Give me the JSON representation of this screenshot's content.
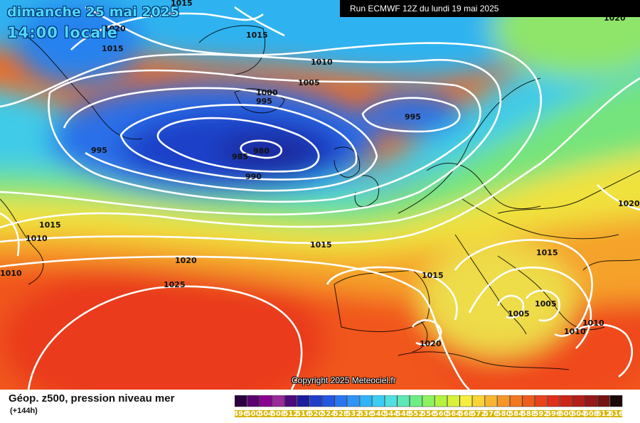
{
  "header": {
    "date": "dimanche 25 mai 2025",
    "time": "14:00 locale",
    "run": "Run ECMWF 12Z du lundi 19 mai 2025"
  },
  "copyright": "Copyright 2025 Meteociel.fr",
  "footer": {
    "field": "Géop. z500, pression niveau mer",
    "step": "(+144h)"
  },
  "legend": {
    "labels": [
      "496",
      "500",
      "504",
      "508",
      "512",
      "516",
      "520",
      "524",
      "528",
      "532",
      "536",
      "540",
      "544",
      "548",
      "552",
      "556",
      "560",
      "564",
      "568",
      "572",
      "576",
      "580",
      "584",
      "588",
      "592",
      "596",
      "600",
      "604",
      "608",
      "612",
      "616"
    ],
    "colors": [
      "#2a0040",
      "#5a0070",
      "#8a0090",
      "#9a2a9a",
      "#4d0a7a",
      "#1c1c9e",
      "#1f3ec8",
      "#2458e0",
      "#2a76f0",
      "#2f94f5",
      "#30b4f7",
      "#3ccdf3",
      "#51dfe0",
      "#5ee8b5",
      "#6cee84",
      "#8ef260",
      "#b4f240",
      "#d8f23a",
      "#f5ee40",
      "#f8d438",
      "#f8b630",
      "#f59628",
      "#f27822",
      "#ee5c1e",
      "#ea421a",
      "#e0301a",
      "#cc2618",
      "#b41e18",
      "#961818",
      "#741212",
      "#1a0a0a"
    ]
  },
  "isobars": [
    {
      "value": "1015",
      "where": "left-top"
    },
    {
      "value": "1015",
      "where": "north-atlantic-top"
    },
    {
      "value": "1020",
      "where": "top-left"
    },
    {
      "value": "1015",
      "where": "greenland-east"
    },
    {
      "value": "1010",
      "where": "north-sea-top"
    },
    {
      "value": "1005",
      "where": "norwegian-sea"
    },
    {
      "value": "1000",
      "where": "iceland-south"
    },
    {
      "value": "995",
      "where": "iceland-south-2"
    },
    {
      "value": "995",
      "where": "scandinavia-low"
    },
    {
      "value": "995",
      "where": "labrador"
    },
    {
      "value": "985",
      "where": "atlantic-low"
    },
    {
      "value": "980",
      "where": "atlantic-low-center"
    },
    {
      "value": "990",
      "where": "atlantic-low-south"
    },
    {
      "value": "1015",
      "where": "west-atlantic"
    },
    {
      "value": "1010",
      "where": "west-edge"
    },
    {
      "value": "1010",
      "where": "west-edge-2"
    },
    {
      "value": "1015",
      "where": "biscay"
    },
    {
      "value": "1020",
      "where": "mid-atlantic"
    },
    {
      "value": "1025",
      "where": "azores"
    },
    {
      "value": "1015",
      "where": "iberia"
    },
    {
      "value": "1015",
      "where": "balkans"
    },
    {
      "value": "1005",
      "where": "italy-south"
    },
    {
      "value": "1005",
      "where": "greece"
    },
    {
      "value": "1010",
      "where": "turkey"
    },
    {
      "value": "1010",
      "where": "aegean"
    },
    {
      "value": "1020",
      "where": "north-africa"
    },
    {
      "value": "1020",
      "where": "russia"
    },
    {
      "value": "1020",
      "where": "top-right"
    }
  ]
}
